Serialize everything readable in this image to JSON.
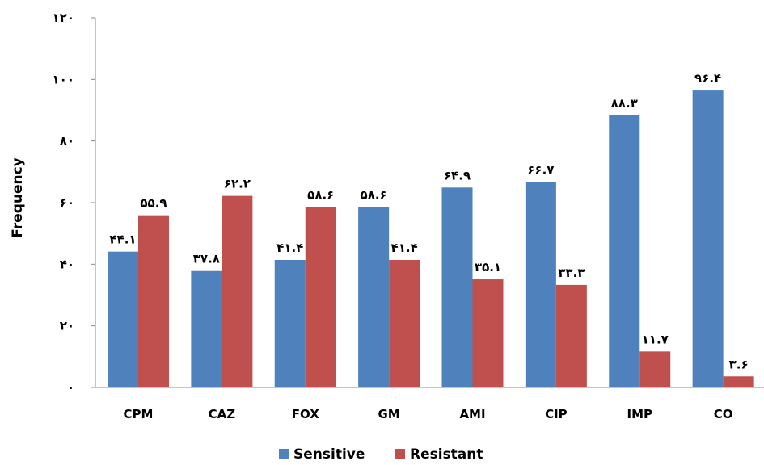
{
  "chart_data": {
    "type": "bar",
    "title": "",
    "xlabel": "",
    "ylabel": "Frequency",
    "ylim": [
      0,
      120
    ],
    "yticks": [
      0,
      20,
      40,
      60,
      80,
      100,
      120
    ],
    "ytick_labels": [
      "٠",
      "٢٠",
      "۴٠",
      "۶٠",
      "٨٠",
      "١٠٠",
      "١٢٠"
    ],
    "categories": [
      "CPM",
      "CAZ",
      "FOX",
      "GM",
      "AMI",
      "CIP",
      "IMP",
      "CO"
    ],
    "series": [
      {
        "name": "Sensitive",
        "color": "#4F81BD",
        "values": [
          44.1,
          37.8,
          41.4,
          58.6,
          64.9,
          66.7,
          88.3,
          96.4
        ],
        "labels": [
          "۴۴.١",
          "٣٧.٨",
          "۴١.۴",
          "۵٨.۶",
          "۶۴.٩",
          "۶۶.٧",
          "٨٨.٣",
          "٩۶.۴"
        ]
      },
      {
        "name": "Resistant",
        "color": "#C0504D",
        "values": [
          55.9,
          62.2,
          58.6,
          41.4,
          35.1,
          33.3,
          11.7,
          3.6
        ],
        "labels": [
          "۵۵.٩",
          "۶٢.٢",
          "۵٨.۶",
          "۴١.۴",
          "٣۵.١",
          "٣٣.٣",
          "١١.٧",
          "٣.۶"
        ]
      }
    ],
    "grid": false,
    "legend": "bottom"
  }
}
